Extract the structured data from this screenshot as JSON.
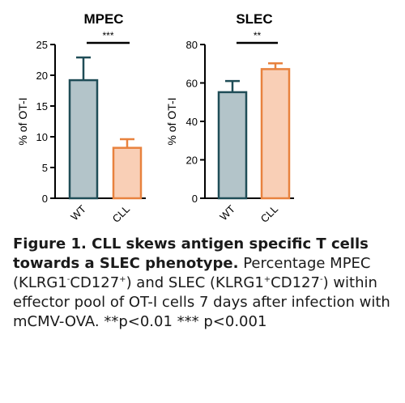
{
  "chart_data": [
    {
      "type": "bar",
      "title": "MPEC",
      "ylabel": "% of OT-I",
      "categories": [
        "WT",
        "CLL"
      ],
      "values": [
        19.2,
        8.2
      ],
      "error_upper": [
        22.9,
        9.6
      ],
      "ylim": [
        0,
        25
      ],
      "yticks": [
        0,
        5,
        10,
        15,
        20,
        25
      ],
      "significance": "***",
      "fill_colors": [
        "#b3c4c9",
        "#f9cfb6"
      ],
      "stroke_colors": [
        "#1f4d57",
        "#e8823e"
      ]
    },
    {
      "type": "bar",
      "title": "SLEC",
      "ylabel": "% of OT-I",
      "categories": [
        "WT",
        "CLL"
      ],
      "values": [
        55.2,
        67.2
      ],
      "error_upper": [
        61.0,
        70.2
      ],
      "ylim": [
        0,
        80
      ],
      "yticks": [
        0,
        20,
        40,
        60,
        80
      ],
      "significance": "**",
      "fill_colors": [
        "#b3c4c9",
        "#f9cfb6"
      ],
      "stroke_colors": [
        "#1f4d57",
        "#e8823e"
      ]
    }
  ],
  "caption": {
    "title": "Figure 1. CLL skews antigen specific T cells towards a SLEC phenotype.",
    "text_1": " Percentage MPEC (KLRG1",
    "sup_1": "-",
    "text_2": "CD127",
    "sup_2": "+",
    "text_3": ") and SLEC (KLRG1",
    "sup_3": "+",
    "text_4": "CD127",
    "sup_4": "-",
    "text_5": ") within effector pool of OT-I cells 7 days after infection with mCMV-OVA. **p<0.01 *** p<0.001"
  }
}
